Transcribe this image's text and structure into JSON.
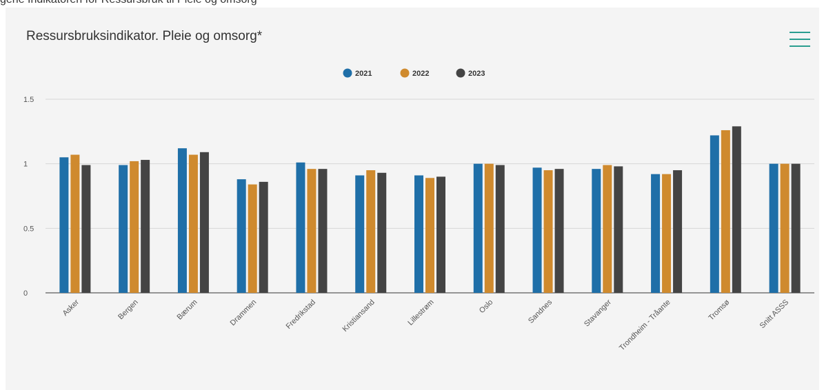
{
  "page_top_text": "gene Indikatoren for Ressursbruk til Pleie og omsorg",
  "chart_data": {
    "type": "bar",
    "title": "Ressursbruksindikator. Pleie og omsorg*",
    "xlabel": "",
    "ylabel": "",
    "ylim": [
      0,
      1.5
    ],
    "y_ticks": [
      {
        "value": 0,
        "label": "0"
      },
      {
        "value": 0.5,
        "label": "0.5"
      },
      {
        "value": 1,
        "label": "1"
      },
      {
        "value": 1.5,
        "label": "1.5"
      }
    ],
    "grid": true,
    "legend_position": "top-center",
    "categories": [
      "Asker",
      "Bergen",
      "Bærum",
      "Drammen",
      "Fredrikstad",
      "Kristiansand",
      "Lillestrøm",
      "Oslo",
      "Sandnes",
      "Stavanger",
      "Trondheim - Tråante",
      "Tromsø",
      "Snitt ASSS"
    ],
    "series": [
      {
        "name": "2021",
        "color": "#1f6fa8",
        "values": [
          1.05,
          0.99,
          1.12,
          0.88,
          1.01,
          0.91,
          0.91,
          1.0,
          0.97,
          0.96,
          0.92,
          1.22,
          1.0
        ]
      },
      {
        "name": "2022",
        "color": "#cf8a2e",
        "values": [
          1.07,
          1.02,
          1.07,
          0.84,
          0.96,
          0.95,
          0.89,
          1.0,
          0.95,
          0.99,
          0.92,
          1.26,
          1.0
        ]
      },
      {
        "name": "2023",
        "color": "#444444",
        "values": [
          0.99,
          1.03,
          1.09,
          0.86,
          0.96,
          0.93,
          0.9,
          0.99,
          0.96,
          0.98,
          0.95,
          1.29,
          1.0
        ]
      }
    ]
  },
  "menu": {
    "icon": "hamburger-menu-icon",
    "color": "#2a9d8f"
  }
}
